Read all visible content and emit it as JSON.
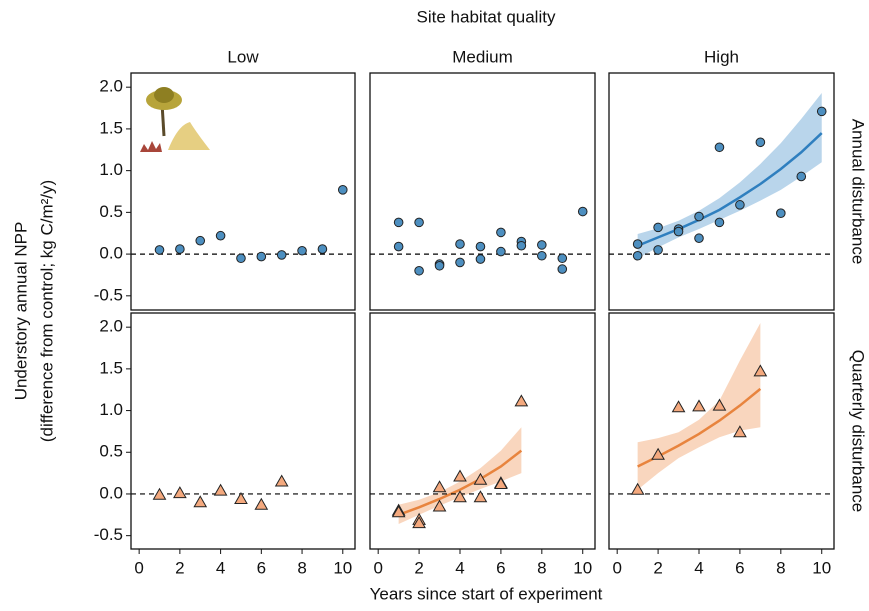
{
  "figure": {
    "column_title": "Site habitat quality",
    "columns": [
      "Low",
      "Medium",
      "High"
    ],
    "rows": [
      "Annual disturbance",
      "Quarterly disturbance"
    ],
    "ylabel": [
      "Understory annual NPP",
      "(difference from control; kg C/m²/y)"
    ],
    "xlabel": "Years since start of experiment"
  },
  "chart_data": [
    {
      "type": "scatter",
      "marker": "circle",
      "color": "#4d8fc0",
      "reference_line": 0,
      "x": [
        1,
        2,
        3,
        4,
        5,
        6,
        7,
        8,
        9,
        10
      ],
      "values": [
        0.05,
        0.06,
        0.16,
        0.22,
        -0.05,
        -0.03,
        -0.01,
        0.04,
        0.06,
        0.77
      ],
      "xlim": [
        -0.4,
        10.6
      ],
      "ylim": [
        -0.67,
        2.17
      ],
      "yticks": [
        -0.5,
        {
          "value": 0,
          "label": "0.0"
        },
        0.5,
        {
          "value": 1,
          "label": "1.0"
        },
        1.5,
        {
          "value": 2,
          "label": "2.0"
        }
      ]
    },
    {
      "type": "scatter",
      "marker": "circle",
      "color": "#4d8fc0",
      "reference_line": 0,
      "x": [
        1,
        1,
        2,
        2,
        3,
        3,
        4,
        4,
        5,
        5,
        6,
        6,
        7,
        7,
        8,
        8,
        9,
        9,
        10
      ],
      "values": [
        0.38,
        0.09,
        0.38,
        -0.2,
        -0.12,
        -0.14,
        0.12,
        -0.1,
        0.09,
        -0.06,
        0.26,
        0.03,
        0.15,
        0.1,
        0.11,
        -0.02,
        -0.05,
        -0.18,
        0.51
      ],
      "xlim": [
        -0.4,
        10.6
      ],
      "ylim": [
        -0.67,
        2.17
      ]
    },
    {
      "type": "scatter",
      "marker": "circle",
      "color": "#4d8fc0",
      "reference_line": 0,
      "x": [
        1,
        1,
        2,
        2,
        3,
        3,
        4,
        4,
        5,
        5,
        6,
        7,
        8,
        9,
        10
      ],
      "values": [
        0.12,
        -0.02,
        0.32,
        0.05,
        0.3,
        0.27,
        0.45,
        0.19,
        1.28,
        0.38,
        0.59,
        1.34,
        0.49,
        0.93,
        1.71
      ],
      "xlim": [
        -0.4,
        10.6
      ],
      "ylim": [
        -0.67,
        2.17
      ],
      "fit": {
        "color": "#2f7fbf",
        "band_color": "#b9d5eb",
        "x": [
          1,
          2,
          3,
          4,
          5,
          6,
          7,
          8,
          9,
          10
        ],
        "values": [
          0.1,
          0.2,
          0.3,
          0.41,
          0.53,
          0.68,
          0.84,
          1.02,
          1.22,
          1.45
        ],
        "lower": [
          -0.05,
          0.08,
          0.2,
          0.3,
          0.41,
          0.52,
          0.64,
          0.77,
          0.93,
          1.1
        ],
        "upper": [
          0.24,
          0.31,
          0.4,
          0.52,
          0.67,
          0.86,
          1.08,
          1.33,
          1.62,
          1.93
        ]
      }
    },
    {
      "type": "scatter",
      "marker": "triangle",
      "color": "#f4a97e",
      "reference_line": 0,
      "x": [
        1,
        2,
        3,
        4,
        5,
        6,
        7
      ],
      "values": [
        -0.01,
        0.01,
        -0.1,
        0.04,
        -0.06,
        -0.13,
        0.15
      ],
      "xlim": [
        -0.4,
        10.6
      ],
      "ylim": [
        -0.66,
        2.17
      ],
      "xticks": [
        0,
        2,
        4,
        6,
        8,
        10
      ],
      "yticks": [
        -0.5,
        {
          "value": 0,
          "label": "0.0"
        },
        0.5,
        {
          "value": 1,
          "label": "1.0"
        },
        1.5,
        {
          "value": 2,
          "label": "2.0"
        }
      ]
    },
    {
      "type": "scatter",
      "marker": "triangle",
      "color": "#f4a97e",
      "reference_line": 0,
      "x": [
        1,
        1,
        2,
        2,
        3,
        3,
        4,
        4,
        5,
        5,
        6,
        6,
        7
      ],
      "values": [
        -0.2,
        -0.22,
        -0.31,
        -0.35,
        0.08,
        -0.15,
        0.21,
        -0.04,
        0.17,
        -0.04,
        0.13,
        0.12,
        1.11
      ],
      "xlim": [
        -0.4,
        10.6
      ],
      "ylim": [
        -0.66,
        2.17
      ],
      "xticks": [
        0,
        2,
        4,
        6,
        8,
        10
      ],
      "fit": {
        "color": "#e8843e",
        "band_color": "#f9d6be",
        "x": [
          1,
          2,
          3,
          4,
          5,
          6,
          7
        ],
        "values": [
          -0.25,
          -0.16,
          -0.06,
          0.05,
          0.18,
          0.33,
          0.52
        ],
        "lower": [
          -0.36,
          -0.25,
          -0.14,
          -0.04,
          0.06,
          0.15,
          0.25
        ],
        "upper": [
          -0.13,
          -0.07,
          0.02,
          0.15,
          0.31,
          0.52,
          0.8
        ]
      }
    },
    {
      "type": "scatter",
      "marker": "triangle",
      "color": "#f4a97e",
      "reference_line": 0,
      "x": [
        1,
        2,
        3,
        4,
        5,
        6,
        7
      ],
      "values": [
        0.05,
        0.47,
        1.04,
        1.05,
        1.06,
        0.74,
        1.47
      ],
      "xlim": [
        -0.4,
        10.6
      ],
      "ylim": [
        -0.66,
        2.17
      ],
      "xticks": [
        0,
        2,
        4,
        6,
        8,
        10
      ],
      "fit": {
        "color": "#e8843e",
        "band_color": "#f9d6be",
        "x": [
          1,
          2,
          3,
          4,
          5,
          6,
          7
        ],
        "values": [
          0.33,
          0.45,
          0.58,
          0.72,
          0.88,
          1.06,
          1.26
        ],
        "lower": [
          0.05,
          0.25,
          0.43,
          0.56,
          0.68,
          0.76,
          0.8
        ],
        "upper": [
          0.62,
          0.67,
          0.74,
          0.89,
          1.12,
          1.6,
          2.05
        ]
      }
    }
  ]
}
